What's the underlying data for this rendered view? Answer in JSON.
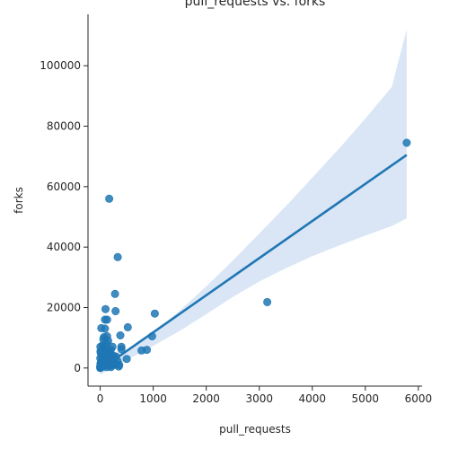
{
  "chart_data": {
    "type": "scatter",
    "title": "pull_requests vs. forks",
    "xlabel": "pull_requests",
    "ylabel": "forks",
    "xlim": [
      -230,
      6070
    ],
    "ylim": [
      -6000,
      117000
    ],
    "xticks": [
      0,
      1000,
      2000,
      3000,
      4000,
      5000,
      6000
    ],
    "yticks": [
      0,
      20000,
      40000,
      60000,
      80000,
      100000
    ],
    "grid": false,
    "point_color": "#1f77b4",
    "line_color": "#1f77b4",
    "band_color": "#aec7e8",
    "regression": {
      "x_start": 0,
      "y_start": -500,
      "x_end": 5780,
      "y_end": 70500
    },
    "confidence_band": {
      "x": [
        0,
        250,
        500,
        750,
        1000,
        1500,
        2000,
        2500,
        3000,
        3500,
        4000,
        4500,
        5000,
        5500,
        5780
      ],
      "upper": [
        1200,
        3000,
        5400,
        8400,
        11700,
        19000,
        27000,
        35500,
        44500,
        53500,
        63000,
        72500,
        82500,
        93000,
        112000
      ],
      "lower": [
        -2200,
        400,
        2700,
        4900,
        7300,
        12300,
        17800,
        23500,
        28600,
        33000,
        37000,
        40500,
        43800,
        47000,
        49500
      ]
    },
    "points": [
      [
        5780,
        74500
      ],
      [
        3150,
        21800
      ],
      [
        170,
        56000
      ],
      [
        330,
        36700
      ],
      [
        280,
        24500
      ],
      [
        1030,
        18000
      ],
      [
        290,
        18800
      ],
      [
        100,
        19500
      ],
      [
        90,
        16000
      ],
      [
        130,
        16000
      ],
      [
        520,
        13500
      ],
      [
        20,
        13200
      ],
      [
        90,
        13000
      ],
      [
        980,
        10500
      ],
      [
        380,
        10800
      ],
      [
        130,
        10500
      ],
      [
        70,
        10200
      ],
      [
        880,
        6000
      ],
      [
        780,
        5800
      ],
      [
        400,
        7000
      ],
      [
        400,
        6200
      ],
      [
        500,
        3000
      ],
      [
        360,
        1000
      ],
      [
        300,
        3800
      ],
      [
        230,
        7000
      ],
      [
        200,
        6000
      ],
      [
        180,
        5000
      ],
      [
        250,
        4000
      ],
      [
        150,
        9000
      ],
      [
        60,
        9500
      ],
      [
        120,
        8000
      ],
      [
        80,
        7000
      ],
      [
        40,
        6000
      ],
      [
        10,
        5000
      ],
      [
        160,
        4500
      ],
      [
        220,
        2500
      ],
      [
        270,
        3000
      ],
      [
        140,
        3200
      ],
      [
        110,
        4200
      ],
      [
        90,
        3500
      ],
      [
        60,
        3000
      ],
      [
        30,
        2500
      ],
      [
        15,
        2000
      ],
      [
        5,
        1500
      ],
      [
        0,
        500
      ],
      [
        0,
        0
      ],
      [
        5,
        200
      ],
      [
        10,
        800
      ],
      [
        20,
        1200
      ],
      [
        40,
        1800
      ],
      [
        50,
        600
      ],
      [
        70,
        1000
      ],
      [
        90,
        2200
      ],
      [
        110,
        1400
      ],
      [
        130,
        2000
      ],
      [
        150,
        1500
      ],
      [
        170,
        800
      ],
      [
        190,
        2800
      ],
      [
        210,
        1600
      ],
      [
        240,
        900
      ],
      [
        260,
        1800
      ],
      [
        300,
        1200
      ],
      [
        330,
        2200
      ],
      [
        350,
        500
      ],
      [
        25,
        4000
      ],
      [
        45,
        7500
      ],
      [
        75,
        5500
      ],
      [
        100,
        6500
      ],
      [
        120,
        300
      ],
      [
        200,
        300
      ],
      [
        8,
        100
      ],
      [
        12,
        300
      ],
      [
        18,
        600
      ],
      [
        28,
        900
      ],
      [
        35,
        400
      ],
      [
        55,
        1500
      ],
      [
        65,
        2600
      ],
      [
        85,
        4800
      ],
      [
        95,
        900
      ],
      [
        105,
        2700
      ],
      [
        125,
        5800
      ],
      [
        145,
        3800
      ],
      [
        165,
        2300
      ],
      [
        185,
        1200
      ],
      [
        205,
        4000
      ],
      [
        225,
        3400
      ],
      [
        245,
        2100
      ],
      [
        2,
        3200
      ],
      [
        3,
        7000
      ],
      [
        6,
        5500
      ]
    ]
  }
}
